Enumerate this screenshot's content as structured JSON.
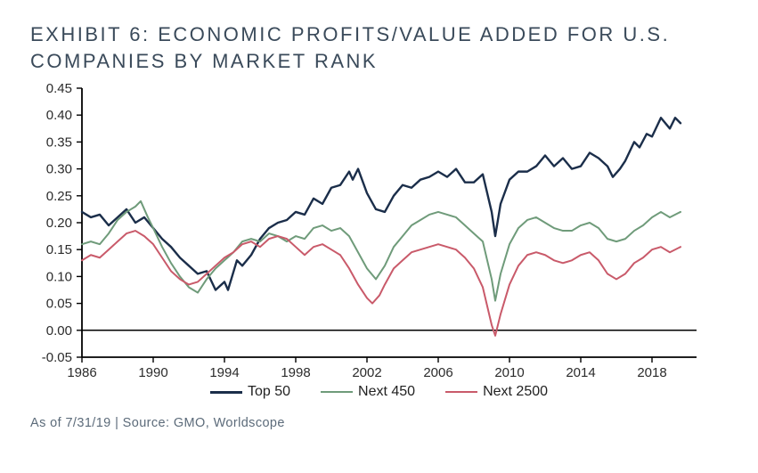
{
  "title_line1": "EXHIBIT 6: ECONOMIC PROFITS/VALUE ADDED FOR U.S.",
  "title_line2": "COMPANIES BY MARKET RANK",
  "footnote": "As of 7/31/19 | Source: GMO, Worldscope",
  "chart": {
    "type": "line",
    "background_color": "#ffffff",
    "axis_color": "#000000",
    "axis_width": 1.8,
    "zero_line_color": "#000000",
    "zero_line_width": 1.5,
    "label_fontsize": 15,
    "label_color": "#2b2b2b",
    "x": {
      "min": 1986,
      "max": 2020.5,
      "ticks": [
        1986,
        1990,
        1994,
        1998,
        2002,
        2006,
        2010,
        2014,
        2018
      ],
      "tick_len": 6
    },
    "y": {
      "min": -0.05,
      "max": 0.45,
      "ticks": [
        -0.05,
        0.0,
        0.05,
        0.1,
        0.15,
        0.2,
        0.25,
        0.3,
        0.35,
        0.4,
        0.45
      ],
      "tick_labels": [
        "-0.05",
        "0.00",
        "0.05",
        "0.10",
        "0.15",
        "0.20",
        "0.25",
        "0.30",
        "0.35",
        "0.40",
        "0.45"
      ],
      "tick_len": 6,
      "decimals": 2
    },
    "series": [
      {
        "name": "Top 50",
        "color": "#1b2e4a",
        "width": 2.4,
        "points": [
          [
            1986,
            0.22
          ],
          [
            1986.5,
            0.21
          ],
          [
            1987,
            0.215
          ],
          [
            1987.5,
            0.195
          ],
          [
            1988,
            0.21
          ],
          [
            1988.5,
            0.225
          ],
          [
            1989,
            0.2
          ],
          [
            1989.5,
            0.21
          ],
          [
            1990,
            0.19
          ],
          [
            1990.5,
            0.17
          ],
          [
            1991,
            0.155
          ],
          [
            1991.5,
            0.135
          ],
          [
            1992,
            0.12
          ],
          [
            1992.5,
            0.105
          ],
          [
            1993,
            0.11
          ],
          [
            1993.5,
            0.075
          ],
          [
            1994,
            0.09
          ],
          [
            1994.2,
            0.075
          ],
          [
            1994.7,
            0.13
          ],
          [
            1995,
            0.12
          ],
          [
            1995.5,
            0.14
          ],
          [
            1996,
            0.17
          ],
          [
            1996.5,
            0.19
          ],
          [
            1997,
            0.2
          ],
          [
            1997.5,
            0.205
          ],
          [
            1998,
            0.22
          ],
          [
            1998.5,
            0.215
          ],
          [
            1999,
            0.245
          ],
          [
            1999.5,
            0.235
          ],
          [
            2000,
            0.265
          ],
          [
            2000.5,
            0.27
          ],
          [
            2001,
            0.295
          ],
          [
            2001.2,
            0.28
          ],
          [
            2001.5,
            0.3
          ],
          [
            2002,
            0.255
          ],
          [
            2002.5,
            0.225
          ],
          [
            2003,
            0.22
          ],
          [
            2003.5,
            0.25
          ],
          [
            2004,
            0.27
          ],
          [
            2004.5,
            0.265
          ],
          [
            2005,
            0.28
          ],
          [
            2005.5,
            0.285
          ],
          [
            2006,
            0.295
          ],
          [
            2006.5,
            0.285
          ],
          [
            2007,
            0.3
          ],
          [
            2007.5,
            0.275
          ],
          [
            2008,
            0.275
          ],
          [
            2008.5,
            0.29
          ],
          [
            2009,
            0.22
          ],
          [
            2009.2,
            0.175
          ],
          [
            2009.5,
            0.235
          ],
          [
            2010,
            0.28
          ],
          [
            2010.5,
            0.295
          ],
          [
            2011,
            0.295
          ],
          [
            2011.5,
            0.305
          ],
          [
            2012,
            0.325
          ],
          [
            2012.5,
            0.305
          ],
          [
            2013,
            0.32
          ],
          [
            2013.5,
            0.3
          ],
          [
            2014,
            0.305
          ],
          [
            2014.5,
            0.33
          ],
          [
            2015,
            0.32
          ],
          [
            2015.5,
            0.305
          ],
          [
            2015.8,
            0.285
          ],
          [
            2016.2,
            0.3
          ],
          [
            2016.5,
            0.315
          ],
          [
            2017,
            0.35
          ],
          [
            2017.3,
            0.34
          ],
          [
            2017.7,
            0.365
          ],
          [
            2018,
            0.36
          ],
          [
            2018.5,
            0.395
          ],
          [
            2019,
            0.375
          ],
          [
            2019.3,
            0.395
          ],
          [
            2019.6,
            0.385
          ]
        ]
      },
      {
        "name": "Next 450",
        "color": "#6f9b7a",
        "width": 2.0,
        "points": [
          [
            1986,
            0.16
          ],
          [
            1986.5,
            0.165
          ],
          [
            1987,
            0.16
          ],
          [
            1987.5,
            0.18
          ],
          [
            1988,
            0.205
          ],
          [
            1988.5,
            0.22
          ],
          [
            1989,
            0.23
          ],
          [
            1989.3,
            0.24
          ],
          [
            1989.7,
            0.21
          ],
          [
            1990,
            0.19
          ],
          [
            1990.5,
            0.155
          ],
          [
            1991,
            0.125
          ],
          [
            1991.5,
            0.1
          ],
          [
            1992,
            0.08
          ],
          [
            1992.5,
            0.07
          ],
          [
            1993,
            0.095
          ],
          [
            1993.5,
            0.115
          ],
          [
            1994,
            0.13
          ],
          [
            1994.5,
            0.145
          ],
          [
            1995,
            0.165
          ],
          [
            1995.5,
            0.17
          ],
          [
            1996,
            0.165
          ],
          [
            1996.5,
            0.18
          ],
          [
            1997,
            0.175
          ],
          [
            1997.5,
            0.165
          ],
          [
            1998,
            0.175
          ],
          [
            1998.5,
            0.17
          ],
          [
            1999,
            0.19
          ],
          [
            1999.5,
            0.195
          ],
          [
            2000,
            0.185
          ],
          [
            2000.5,
            0.19
          ],
          [
            2001,
            0.175
          ],
          [
            2001.5,
            0.145
          ],
          [
            2002,
            0.115
          ],
          [
            2002.5,
            0.095
          ],
          [
            2003,
            0.12
          ],
          [
            2003.5,
            0.155
          ],
          [
            2004,
            0.175
          ],
          [
            2004.5,
            0.195
          ],
          [
            2005,
            0.205
          ],
          [
            2005.5,
            0.215
          ],
          [
            2006,
            0.22
          ],
          [
            2006.5,
            0.215
          ],
          [
            2007,
            0.21
          ],
          [
            2007.5,
            0.195
          ],
          [
            2008,
            0.18
          ],
          [
            2008.5,
            0.165
          ],
          [
            2009,
            0.095
          ],
          [
            2009.2,
            0.055
          ],
          [
            2009.5,
            0.105
          ],
          [
            2010,
            0.16
          ],
          [
            2010.5,
            0.19
          ],
          [
            2011,
            0.205
          ],
          [
            2011.5,
            0.21
          ],
          [
            2012,
            0.2
          ],
          [
            2012.5,
            0.19
          ],
          [
            2013,
            0.185
          ],
          [
            2013.5,
            0.185
          ],
          [
            2014,
            0.195
          ],
          [
            2014.5,
            0.2
          ],
          [
            2015,
            0.19
          ],
          [
            2015.5,
            0.17
          ],
          [
            2016,
            0.165
          ],
          [
            2016.5,
            0.17
          ],
          [
            2017,
            0.185
          ],
          [
            2017.5,
            0.195
          ],
          [
            2018,
            0.21
          ],
          [
            2018.5,
            0.22
          ],
          [
            2019,
            0.21
          ],
          [
            2019.6,
            0.22
          ]
        ]
      },
      {
        "name": "Next 2500",
        "color": "#c95a6a",
        "width": 2.0,
        "points": [
          [
            1986,
            0.13
          ],
          [
            1986.5,
            0.14
          ],
          [
            1987,
            0.135
          ],
          [
            1987.5,
            0.15
          ],
          [
            1988,
            0.165
          ],
          [
            1988.5,
            0.18
          ],
          [
            1989,
            0.185
          ],
          [
            1989.5,
            0.175
          ],
          [
            1990,
            0.16
          ],
          [
            1990.5,
            0.135
          ],
          [
            1991,
            0.11
          ],
          [
            1991.5,
            0.095
          ],
          [
            1992,
            0.085
          ],
          [
            1992.5,
            0.09
          ],
          [
            1993,
            0.105
          ],
          [
            1993.5,
            0.12
          ],
          [
            1994,
            0.135
          ],
          [
            1994.5,
            0.145
          ],
          [
            1995,
            0.16
          ],
          [
            1995.5,
            0.165
          ],
          [
            1996,
            0.155
          ],
          [
            1996.5,
            0.17
          ],
          [
            1997,
            0.175
          ],
          [
            1997.5,
            0.17
          ],
          [
            1998,
            0.155
          ],
          [
            1998.5,
            0.14
          ],
          [
            1999,
            0.155
          ],
          [
            1999.5,
            0.16
          ],
          [
            2000,
            0.15
          ],
          [
            2000.5,
            0.14
          ],
          [
            2001,
            0.115
          ],
          [
            2001.5,
            0.085
          ],
          [
            2002,
            0.06
          ],
          [
            2002.3,
            0.05
          ],
          [
            2002.7,
            0.065
          ],
          [
            2003,
            0.085
          ],
          [
            2003.5,
            0.115
          ],
          [
            2004,
            0.13
          ],
          [
            2004.5,
            0.145
          ],
          [
            2005,
            0.15
          ],
          [
            2005.5,
            0.155
          ],
          [
            2006,
            0.16
          ],
          [
            2006.5,
            0.155
          ],
          [
            2007,
            0.15
          ],
          [
            2007.5,
            0.135
          ],
          [
            2008,
            0.115
          ],
          [
            2008.5,
            0.08
          ],
          [
            2009,
            0.01
          ],
          [
            2009.2,
            -0.01
          ],
          [
            2009.5,
            0.03
          ],
          [
            2010,
            0.085
          ],
          [
            2010.5,
            0.12
          ],
          [
            2011,
            0.14
          ],
          [
            2011.5,
            0.145
          ],
          [
            2012,
            0.14
          ],
          [
            2012.5,
            0.13
          ],
          [
            2013,
            0.125
          ],
          [
            2013.5,
            0.13
          ],
          [
            2014,
            0.14
          ],
          [
            2014.5,
            0.145
          ],
          [
            2015,
            0.13
          ],
          [
            2015.5,
            0.105
          ],
          [
            2016,
            0.095
          ],
          [
            2016.5,
            0.105
          ],
          [
            2017,
            0.125
          ],
          [
            2017.5,
            0.135
          ],
          [
            2018,
            0.15
          ],
          [
            2018.5,
            0.155
          ],
          [
            2019,
            0.145
          ],
          [
            2019.6,
            0.155
          ]
        ]
      }
    ],
    "legend": {
      "items": [
        "Top 50",
        "Next 450",
        "Next 2500"
      ],
      "fontsize": 16
    }
  }
}
